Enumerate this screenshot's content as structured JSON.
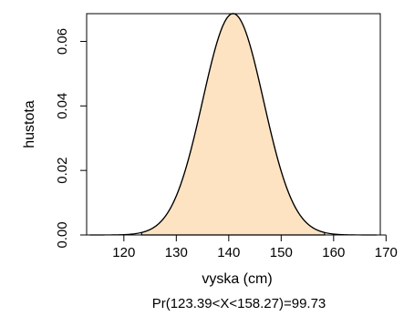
{
  "chart_data": {
    "type": "area",
    "title": "",
    "xlabel": "vyska (cm)",
    "ylabel": "hustota",
    "caption": "Pr(123.39<X<158.27)=99.73",
    "distribution": {
      "mean": 140.83,
      "sd": 5.813
    },
    "xlim": [
      112.9,
      168.9
    ],
    "ylim": [
      0,
      0.0686
    ],
    "x_ticks": [
      120,
      130,
      140,
      150,
      160,
      170
    ],
    "x_tick_labels": [
      "120",
      "130",
      "140",
      "150",
      "160",
      "170"
    ],
    "y_ticks": [
      0.0,
      0.02,
      0.04,
      0.06
    ],
    "y_tick_labels": [
      "0.00",
      "0.02",
      "0.04",
      "0.06"
    ],
    "shaded_interval": [
      123.39,
      158.27
    ],
    "curve_range": [
      113.5,
      168.2
    ],
    "grid": false,
    "colors": {
      "fill": "#fde3c1",
      "line": "#000000",
      "box": "#000000"
    }
  }
}
